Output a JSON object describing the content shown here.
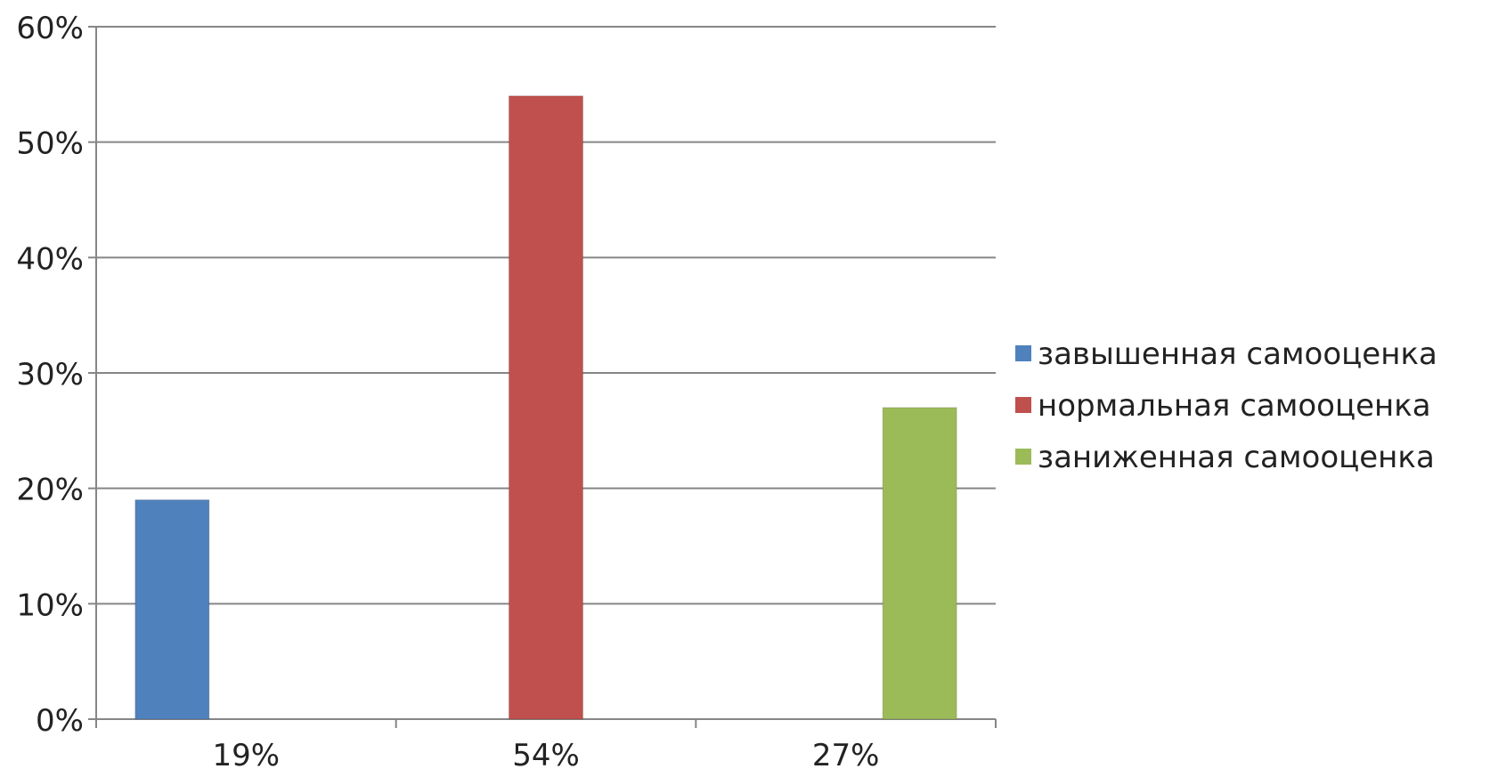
{
  "chart_data": {
    "type": "bar",
    "title": "",
    "xlabel": "",
    "ylabel": "",
    "categories": [
      "19%",
      "54%",
      "27%"
    ],
    "series": [
      {
        "name": "завышенная самооценка",
        "values": [
          19,
          null,
          null
        ],
        "color": "#4F81BD"
      },
      {
        "name": "нормальная самооценка",
        "values": [
          null,
          54,
          null
        ],
        "color": "#C0504D"
      },
      {
        "name": "заниженная самооценка",
        "values": [
          null,
          null,
          27
        ],
        "color": "#9BBB59"
      }
    ],
    "ylim": [
      0,
      60
    ],
    "yticks": [
      "0%",
      "10%",
      "20%",
      "30%",
      "40%",
      "50%",
      "60%"
    ],
    "grid": true,
    "legend": "right"
  }
}
